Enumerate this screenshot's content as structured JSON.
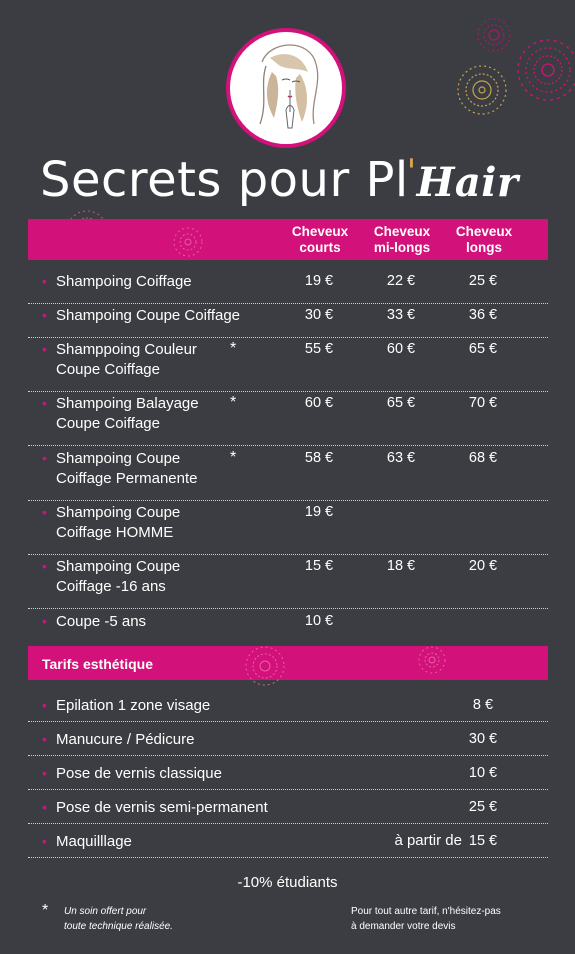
{
  "brand": {
    "title_main": "Secrets pour Pl",
    "title_apostrophe": "'",
    "title_script": "Hair",
    "accent_color": "#d2117a",
    "background_color": "#3c3d42"
  },
  "hair": {
    "columns": [
      "Cheveux\ncourts",
      "Cheveux\nmi-longs",
      "Cheveux\nlongs"
    ],
    "rows": [
      {
        "name": "Shampoing Coiffage",
        "star": false,
        "prices": [
          "19 €",
          "22 €",
          "25 €"
        ]
      },
      {
        "name": "Shampoing Coupe Coiffage",
        "star": false,
        "prices": [
          "30 €",
          "33 €",
          "36 €"
        ]
      },
      {
        "name": "Shamppoing Couleur\nCoupe Coiffage",
        "star": true,
        "prices": [
          "55 €",
          "60 €",
          "65 €"
        ]
      },
      {
        "name": "Shampoing Balayage\nCoupe Coiffage",
        "star": true,
        "prices": [
          "60 €",
          "65 €",
          "70 €"
        ]
      },
      {
        "name": "Shampoing Coupe\nCoiffage Permanente",
        "star": true,
        "prices": [
          "58 €",
          "63 €",
          "68 €"
        ]
      },
      {
        "name": "Shampoing Coupe\nCoiffage HOMME",
        "star": false,
        "prices": [
          "19 €",
          "",
          ""
        ]
      },
      {
        "name": "Shampoing Coupe\nCoiffage -16 ans",
        "star": false,
        "prices": [
          "15 €",
          "18 €",
          "20 €"
        ]
      },
      {
        "name": "Coupe -5 ans",
        "star": false,
        "prices": [
          "10 €",
          "",
          ""
        ]
      }
    ]
  },
  "esthetique": {
    "label": "Tarifs esthétique",
    "rows": [
      {
        "name": "Epilation 1 zone visage",
        "prefix": "",
        "price": "8 €"
      },
      {
        "name": "Manucure / Pédicure",
        "prefix": "",
        "price": "30 €"
      },
      {
        "name": "Pose de vernis classique",
        "prefix": "",
        "price": "10 €"
      },
      {
        "name": "Pose de vernis semi-permanent",
        "prefix": "",
        "price": "25 €"
      },
      {
        "name": "Maquilllage",
        "prefix": "à partir de",
        "price": "15 €"
      }
    ]
  },
  "footer": {
    "student": "-10% étudiants",
    "star_symbol": "*",
    "star_note": "Un soin offert pour\ntoute technique réalisée.",
    "other_note": "Pour tout autre tarif, n'hésitez-pas\nà demander votre devis"
  }
}
